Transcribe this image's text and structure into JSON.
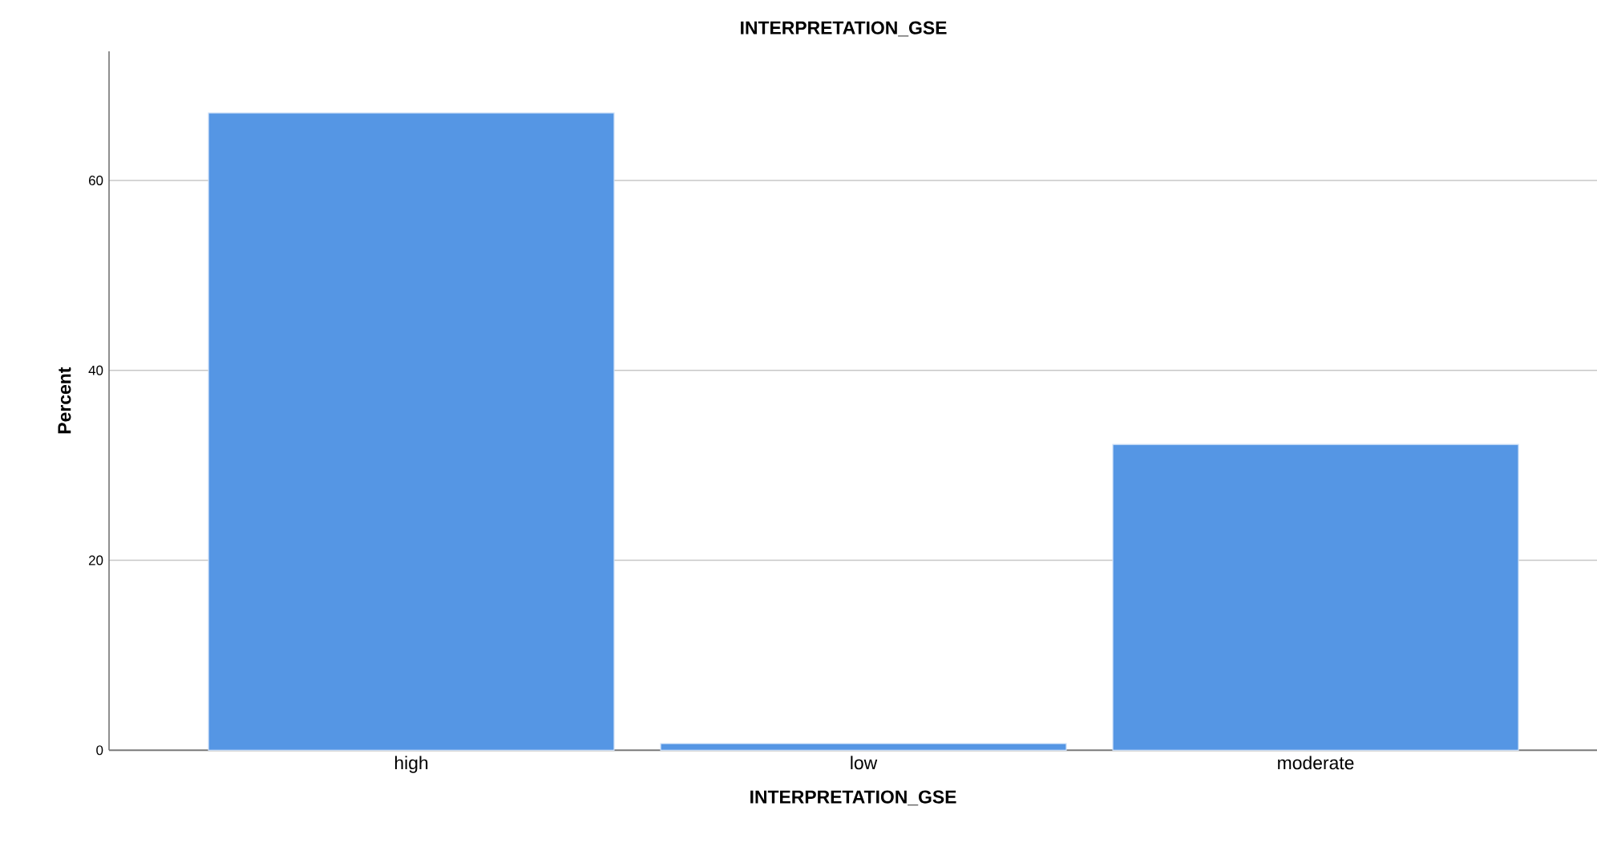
{
  "chart_data": {
    "type": "bar",
    "title": "INTERPRETATION_GSE",
    "xlabel": "INTERPRETATION_GSE",
    "ylabel": "Percent",
    "categories": [
      "high",
      "low",
      "moderate"
    ],
    "values": [
      67.1,
      0.7,
      32.2
    ],
    "color": "#5596e4",
    "ylim": [
      0,
      73.6
    ],
    "yticks": [
      0,
      20,
      40,
      60
    ],
    "grid": "y"
  }
}
